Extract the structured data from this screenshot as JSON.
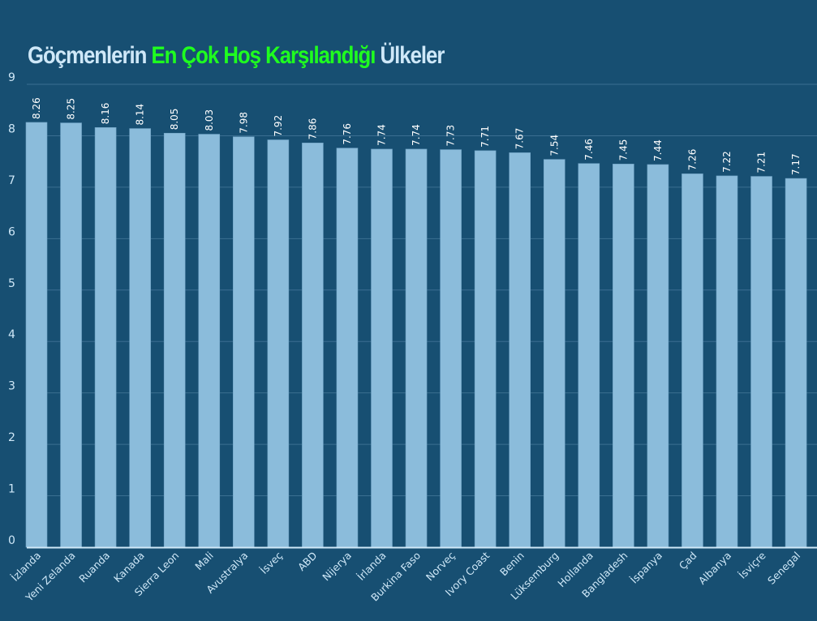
{
  "chart_data": {
    "type": "bar",
    "title_parts": [
      "Göçmenlerin ",
      "En Çok Hoş Karşılandığı",
      " Ülkeler"
    ],
    "categories": [
      "İzlanda",
      "Yeni Zelanda",
      "Ruanda",
      "Kanada",
      "Sierra Leon",
      "Mali",
      "Avustralya",
      "İsveç",
      "ABD",
      "Nijerya",
      "İrlanda",
      "Burkina Faso",
      "Norveç",
      "Ivory Coast",
      "Benin",
      "Lüksemburg",
      "Hollanda",
      "Bangladesh",
      "İspanya",
      "Çad",
      "Albanya",
      "İsviçre",
      "Senegal"
    ],
    "values": [
      8.26,
      8.25,
      8.16,
      8.14,
      8.05,
      8.03,
      7.98,
      7.92,
      7.86,
      7.76,
      7.74,
      7.74,
      7.73,
      7.71,
      7.67,
      7.54,
      7.46,
      7.45,
      7.44,
      7.26,
      7.22,
      7.21,
      7.17
    ],
    "value_labels": [
      "8.26",
      "8.25",
      "8.16",
      "8.14",
      "8.05",
      "8.03",
      "7.98",
      "7.92",
      "7.86",
      "7.76",
      "7.74",
      "7.74",
      "7.73",
      "7.71",
      "7.67",
      "7.54",
      "7.46",
      "7.45",
      "7.44",
      "7.26",
      "7.22",
      "7.21",
      "7.17"
    ],
    "yticks": [
      "0",
      "1",
      "2",
      "3",
      "4",
      "5",
      "6",
      "7",
      "8",
      "9"
    ],
    "ylim": [
      0,
      9
    ],
    "xlabel": "",
    "ylabel": "",
    "grid": true,
    "legend": "none",
    "colors": {
      "background": "#174f72",
      "bar": "#8bbcdb",
      "title": "#cfe8f8",
      "highlight": "#1fff1f",
      "grid": "#3b6f91"
    }
  }
}
